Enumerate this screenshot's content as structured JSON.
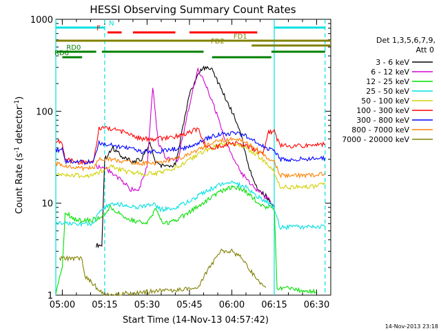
{
  "chart_data": {
    "type": "line",
    "title": "HESSI Observing Summary Count Rates",
    "xlabel": "Start Time (14-Nov-13 04:57:42)",
    "ylabel_main": "Count Rate (s",
    "ylabel_sup1": "-1",
    "ylabel_mid": " detector",
    "ylabel_sup2": "-1",
    "ylabel_end": ")",
    "y_scale": "log",
    "xlim": [
      "04:57:42",
      "06:35:00"
    ],
    "ylim": [
      1,
      1000
    ],
    "x_ticks": [
      "05:00",
      "05:15",
      "05:30",
      "05:45",
      "06:00",
      "06:15",
      "06:30"
    ],
    "y_ticks": [
      {
        "value": 1,
        "label": "1"
      },
      {
        "value": 10,
        "label": "10"
      },
      {
        "value": 100,
        "label": "100"
      },
      {
        "value": 1000,
        "label": "1000"
      }
    ],
    "legend_header": [
      "Det 1,3,5,6,7,9,",
      "Att 0"
    ],
    "legend_position": "right",
    "series": [
      {
        "name": "3 - 6 keV",
        "color": "#000000",
        "points": [
          [
            "05:12",
            3.5
          ],
          [
            "05:14",
            3.5
          ],
          [
            "05:15",
            30
          ],
          [
            "05:18",
            40
          ],
          [
            "05:21",
            32
          ],
          [
            "05:25",
            28
          ],
          [
            "05:28",
            30
          ],
          [
            "05:31",
            45
          ],
          [
            "05:33",
            28
          ],
          [
            "05:36",
            25
          ],
          [
            "05:40",
            26
          ],
          [
            "05:45",
            150
          ],
          [
            "05:48",
            250
          ],
          [
            "05:50",
            300
          ],
          [
            "05:53",
            280
          ],
          [
            "05:56",
            180
          ],
          [
            "06:00",
            100
          ],
          [
            "06:03",
            60
          ],
          [
            "06:06",
            25
          ],
          [
            "06:09",
            14
          ],
          [
            "06:12",
            12
          ],
          [
            "06:14",
            10
          ],
          [
            "06:15",
            9
          ]
        ]
      },
      {
        "name": "6 - 12 keV",
        "color": "#d000d0",
        "points": [
          [
            "05:12",
            25
          ],
          [
            "05:15",
            25
          ],
          [
            "05:18",
            20
          ],
          [
            "05:21",
            18
          ],
          [
            "05:24",
            14
          ],
          [
            "05:27",
            14
          ],
          [
            "05:30",
            25
          ],
          [
            "05:32",
            180
          ],
          [
            "05:34",
            45
          ],
          [
            "05:37",
            30
          ],
          [
            "05:41",
            30
          ],
          [
            "05:45",
            120
          ],
          [
            "05:48",
            280
          ],
          [
            "05:50",
            230
          ],
          [
            "05:53",
            130
          ],
          [
            "05:56",
            70
          ],
          [
            "05:58",
            45
          ],
          [
            "06:01",
            30
          ],
          [
            "06:04",
            20
          ],
          [
            "06:07",
            16
          ],
          [
            "06:10",
            13
          ],
          [
            "06:13",
            11
          ],
          [
            "06:15",
            9
          ]
        ]
      },
      {
        "name": "12 - 25 keV",
        "color": "#00e000",
        "points": [
          [
            "04:57:42",
            1
          ],
          [
            "04:59",
            1.5
          ],
          [
            "05:00",
            2
          ],
          [
            "05:01",
            8
          ],
          [
            "05:05",
            6.5
          ],
          [
            "05:10",
            6.5
          ],
          [
            "05:14",
            7
          ],
          [
            "05:17",
            9
          ],
          [
            "05:21",
            7.5
          ],
          [
            "05:25",
            6.5
          ],
          [
            "05:30",
            6
          ],
          [
            "05:33",
            8.5
          ],
          [
            "05:36",
            6
          ],
          [
            "05:40",
            6.5
          ],
          [
            "05:45",
            8
          ],
          [
            "05:50",
            10
          ],
          [
            "05:55",
            13
          ],
          [
            "06:00",
            15
          ],
          [
            "06:04",
            14
          ],
          [
            "06:08",
            11
          ],
          [
            "06:12",
            9
          ],
          [
            "06:15",
            9
          ],
          [
            "06:16",
            1.2
          ],
          [
            "06:20",
            1.2
          ],
          [
            "06:25",
            1.1
          ],
          [
            "06:30",
            1.1
          ]
        ]
      },
      {
        "name": "25 - 50 keV",
        "color": "#00e0e0",
        "points": [
          [
            "04:57:42",
            6
          ],
          [
            "05:00",
            6
          ],
          [
            "05:05",
            6
          ],
          [
            "05:11",
            6
          ],
          [
            "05:13",
            8
          ],
          [
            "05:17",
            10
          ],
          [
            "05:23",
            9.5
          ],
          [
            "05:27",
            9
          ],
          [
            "05:32",
            10
          ],
          [
            "05:35",
            8.5
          ],
          [
            "05:40",
            9
          ],
          [
            "05:45",
            10.5
          ],
          [
            "05:50",
            13
          ],
          [
            "05:55",
            15.5
          ],
          [
            "06:00",
            17
          ],
          [
            "06:05",
            15
          ],
          [
            "06:09",
            12
          ],
          [
            "06:13",
            10
          ],
          [
            "06:15",
            9
          ],
          [
            "06:17",
            5.5
          ],
          [
            "06:22",
            5.5
          ],
          [
            "06:27",
            5.5
          ],
          [
            "06:33",
            5.5
          ]
        ]
      },
      {
        "name": "50 - 100 keV",
        "color": "#d0d000",
        "points": [
          [
            "04:57:42",
            20
          ],
          [
            "05:00",
            20
          ],
          [
            "05:05",
            20
          ],
          [
            "05:11",
            20
          ],
          [
            "05:13",
            22
          ],
          [
            "05:17",
            25
          ],
          [
            "05:23",
            22
          ],
          [
            "05:28",
            21
          ],
          [
            "05:33",
            21
          ],
          [
            "05:38",
            23
          ],
          [
            "05:43",
            27
          ],
          [
            "05:48",
            34
          ],
          [
            "05:53",
            40
          ],
          [
            "05:57",
            44
          ],
          [
            "06:00",
            45
          ],
          [
            "06:04",
            42
          ],
          [
            "06:08",
            35
          ],
          [
            "06:12",
            28
          ],
          [
            "06:15",
            22
          ],
          [
            "06:17",
            15
          ],
          [
            "06:22",
            15
          ],
          [
            "06:27",
            15
          ],
          [
            "06:33",
            16
          ]
        ]
      },
      {
        "name": "100 - 300 keV",
        "color": "#ff0000",
        "points": [
          [
            "04:57:42",
            48
          ],
          [
            "05:00",
            45
          ],
          [
            "05:01",
            30
          ],
          [
            "05:05",
            28
          ],
          [
            "05:11",
            28
          ],
          [
            "05:13",
            65
          ],
          [
            "05:17",
            65
          ],
          [
            "05:23",
            58
          ],
          [
            "05:28",
            50
          ],
          [
            "05:33",
            50
          ],
          [
            "05:38",
            52
          ],
          [
            "05:43",
            55
          ],
          [
            "05:48",
            65
          ],
          [
            "05:50",
            45
          ],
          [
            "05:53",
            40
          ],
          [
            "05:56",
            42
          ],
          [
            "06:00",
            45
          ],
          [
            "06:04",
            43
          ],
          [
            "06:08",
            38
          ],
          [
            "06:11",
            35
          ],
          [
            "06:13",
            60
          ],
          [
            "06:15",
            60
          ],
          [
            "06:17",
            42
          ],
          [
            "06:22",
            42
          ],
          [
            "06:27",
            42
          ],
          [
            "06:33",
            44
          ]
        ]
      },
      {
        "name": "300 - 800 keV",
        "color": "#0000ff",
        "points": [
          [
            "04:57:42",
            38
          ],
          [
            "05:00",
            38
          ],
          [
            "05:01",
            28
          ],
          [
            "05:05",
            28
          ],
          [
            "05:11",
            28
          ],
          [
            "05:13",
            45
          ],
          [
            "05:17",
            43
          ],
          [
            "05:23",
            40
          ],
          [
            "05:28",
            36
          ],
          [
            "05:33",
            36
          ],
          [
            "05:38",
            38
          ],
          [
            "05:43",
            40
          ],
          [
            "05:48",
            45
          ],
          [
            "05:52",
            52
          ],
          [
            "05:56",
            56
          ],
          [
            "06:00",
            58
          ],
          [
            "06:04",
            55
          ],
          [
            "06:08",
            48
          ],
          [
            "06:12",
            40
          ],
          [
            "06:15",
            38
          ],
          [
            "06:17",
            30
          ],
          [
            "06:22",
            30
          ],
          [
            "06:27",
            30
          ],
          [
            "06:33",
            31
          ]
        ]
      },
      {
        "name": "800 - 7000 keV",
        "color": "#ff8000",
        "points": [
          [
            "04:57:42",
            27
          ],
          [
            "05:00",
            26
          ],
          [
            "05:01",
            25
          ],
          [
            "05:05",
            24
          ],
          [
            "05:11",
            24
          ],
          [
            "05:13",
            31
          ],
          [
            "05:17",
            30
          ],
          [
            "05:23",
            28
          ],
          [
            "05:28",
            27
          ],
          [
            "05:33",
            27
          ],
          [
            "05:38",
            29
          ],
          [
            "05:43",
            32
          ],
          [
            "05:48",
            38
          ],
          [
            "05:52",
            44
          ],
          [
            "05:56",
            48
          ],
          [
            "06:00",
            50
          ],
          [
            "06:04",
            47
          ],
          [
            "06:08",
            40
          ],
          [
            "06:12",
            32
          ],
          [
            "06:15",
            28
          ],
          [
            "06:17",
            20
          ],
          [
            "06:22",
            20
          ],
          [
            "06:27",
            20
          ],
          [
            "06:33",
            21
          ]
        ]
      },
      {
        "name": "7000 - 20000 keV",
        "color": "#808000",
        "points": [
          [
            "04:59",
            2.5
          ],
          [
            "05:00",
            2.5
          ],
          [
            "05:05",
            2.5
          ],
          [
            "05:07",
            2.5
          ],
          [
            "05:08",
            1.6
          ],
          [
            "05:10",
            1.4
          ],
          [
            "05:15",
            1
          ],
          [
            "05:48",
            1.2
          ],
          [
            "05:52",
            2
          ],
          [
            "05:56",
            3
          ],
          [
            "06:00",
            3
          ],
          [
            "06:04",
            2.5
          ],
          [
            "06:08",
            1.6
          ],
          [
            "06:12",
            1.2
          ]
        ]
      }
    ],
    "bars": [
      {
        "label": "N",
        "color": "#00e0e0",
        "segments": [
          [
            "04:57:42",
            "05:15"
          ],
          [
            "06:15",
            "06:33"
          ]
        ]
      },
      {
        "label": "F",
        "color": "#ff0000",
        "segments": [
          [
            "05:16",
            "05:21"
          ],
          [
            "05:25",
            "05:40"
          ],
          [
            "05:45",
            "06:09"
          ]
        ]
      },
      {
        "label": "FD1",
        "color": "#808000",
        "segments": [
          [
            "04:57:42",
            "06:35:00"
          ]
        ]
      },
      {
        "label": "FD2",
        "color": "#808000",
        "segments": [
          [
            "06:07",
            "06:35:00"
          ]
        ]
      },
      {
        "label": "RD0",
        "color": "#008000",
        "segments": [
          [
            "04:58",
            "05:12"
          ],
          [
            "05:14",
            "05:50"
          ],
          [
            "06:14",
            "06:33"
          ]
        ]
      },
      {
        "label": "RD6",
        "color": "#008000",
        "segments": [
          [
            "05:00",
            "05:07"
          ],
          [
            "05:53",
            "06:14"
          ]
        ]
      }
    ],
    "vertical_markers": [
      {
        "time": "04:57:42",
        "style": "solid",
        "color": "#00e0e0"
      },
      {
        "time": "05:15",
        "style": "dashed",
        "color": "#00e0e0"
      },
      {
        "time": "06:15",
        "style": "solid",
        "color": "#00e0e0"
      },
      {
        "time": "06:33",
        "style": "dashed",
        "color": "#00e0e0"
      }
    ],
    "footer": "14-Nov-2013 23:18"
  }
}
